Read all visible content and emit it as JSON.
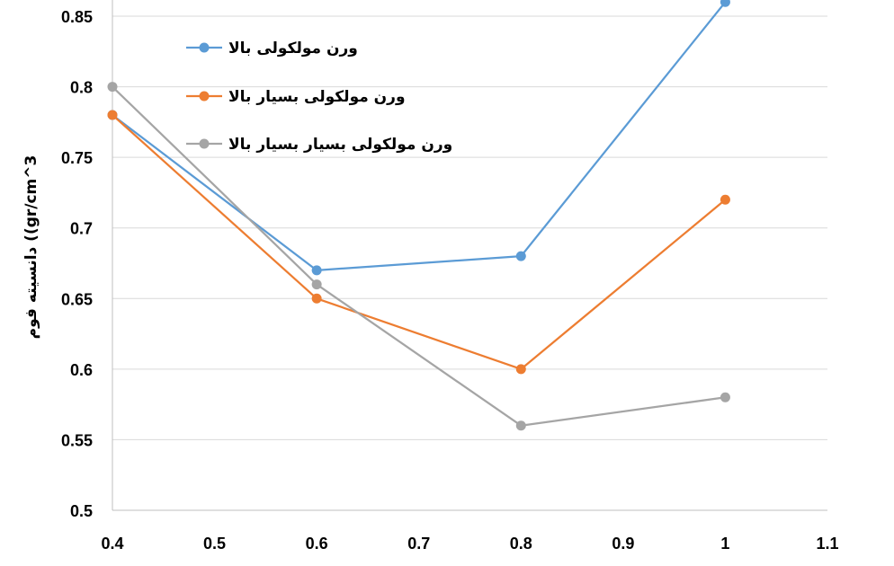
{
  "chart_data": {
    "type": "line",
    "title": "",
    "xlabel": "",
    "ylabel": "دانسیته فوم ((gr/cm^3",
    "xlim": [
      0.4,
      1.1
    ],
    "ylim": [
      0.5,
      0.85
    ],
    "x_ticks": [
      "0.4",
      "0.5",
      "0.6",
      "0.7",
      "0.8",
      "0.9",
      "1",
      "1.1"
    ],
    "y_ticks": [
      "0.5",
      "0.55",
      "0.6",
      "0.65",
      "0.7",
      "0.75",
      "0.8",
      "0.85"
    ],
    "grid": "horizontal",
    "legend_position": "top-center",
    "series": [
      {
        "name": "ورن مولکولی بالا",
        "color": "#5B9BD5",
        "x": [
          0.4,
          0.6,
          0.8,
          1.0
        ],
        "values": [
          0.78,
          0.67,
          0.68,
          0.86
        ]
      },
      {
        "name": "ورن مولکولی بسیار بالا",
        "color": "#ED7D31",
        "x": [
          0.4,
          0.6,
          0.8,
          1.0
        ],
        "values": [
          0.78,
          0.65,
          0.6,
          0.72
        ]
      },
      {
        "name": "ورن مولکولی بسیار بسیار بالا",
        "color": "#A5A5A5",
        "x": [
          0.4,
          0.6,
          0.8,
          1.0
        ],
        "values": [
          0.8,
          0.66,
          0.56,
          0.58
        ]
      }
    ]
  }
}
